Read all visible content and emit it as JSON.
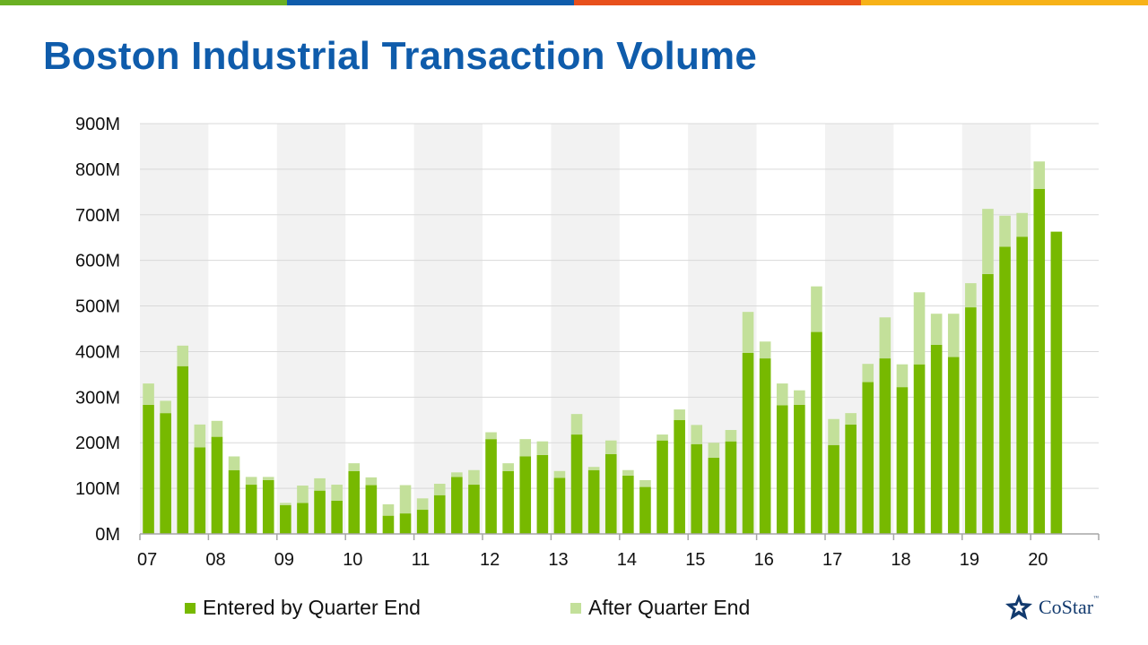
{
  "page": {
    "title": "Boston Industrial Transaction Volume",
    "stripe_colors": [
      "#6ab023",
      "#0f5cab",
      "#e8501c",
      "#f7b218"
    ]
  },
  "legend": {
    "entered_label": "Entered by Quarter End",
    "after_label": "After Quarter End"
  },
  "logo": {
    "text": "CoStar",
    "tm": "™",
    "icon": "costar-star-icon"
  },
  "chart_data": {
    "type": "bar",
    "stacked": true,
    "title": "Boston Industrial Transaction Volume",
    "xlabel": "",
    "ylabel": "",
    "ylim": [
      0,
      900
    ],
    "y_unit": "M",
    "y_ticks": [
      "0M",
      "100M",
      "200M",
      "300M",
      "400M",
      "500M",
      "600M",
      "700M",
      "800M",
      "900M"
    ],
    "x_tick_labels": [
      "07",
      "08",
      "09",
      "10",
      "11",
      "12",
      "13",
      "14",
      "15",
      "16",
      "17",
      "18",
      "19",
      "20"
    ],
    "grid": true,
    "legend_position": "bottom",
    "colors": {
      "entered": "#77b900",
      "after": "#c3e09a",
      "band": "#f2f2f2",
      "grid": "#d9d9d9",
      "axis": "#a6a6a6"
    },
    "categories": [
      "2007 Q1",
      "2007 Q2",
      "2007 Q3",
      "2007 Q4",
      "2008 Q1",
      "2008 Q2",
      "2008 Q3",
      "2008 Q4",
      "2009 Q1",
      "2009 Q2",
      "2009 Q3",
      "2009 Q4",
      "2010 Q1",
      "2010 Q2",
      "2010 Q3",
      "2010 Q4",
      "2011 Q1",
      "2011 Q2",
      "2011 Q3",
      "2011 Q4",
      "2012 Q1",
      "2012 Q2",
      "2012 Q3",
      "2012 Q4",
      "2013 Q1",
      "2013 Q2",
      "2013 Q3",
      "2013 Q4",
      "2014 Q1",
      "2014 Q2",
      "2014 Q3",
      "2014 Q4",
      "2015 Q1",
      "2015 Q2",
      "2015 Q3",
      "2015 Q4",
      "2016 Q1",
      "2016 Q2",
      "2016 Q3",
      "2016 Q4",
      "2017 Q1",
      "2017 Q2",
      "2017 Q3",
      "2017 Q4",
      "2018 Q1",
      "2018 Q2",
      "2018 Q3",
      "2018 Q4",
      "2019 Q1",
      "2019 Q2",
      "2019 Q3",
      "2019 Q4",
      "2020 Q1",
      "2020 Q2"
    ],
    "series": [
      {
        "name": "Entered by Quarter End",
        "values": [
          283,
          265,
          368,
          190,
          213,
          140,
          108,
          118,
          63,
          68,
          95,
          73,
          138,
          107,
          40,
          45,
          53,
          85,
          125,
          108,
          208,
          138,
          170,
          173,
          123,
          218,
          140,
          175,
          128,
          103,
          205,
          250,
          197,
          167,
          203,
          397,
          385,
          282,
          283,
          443,
          195,
          240,
          333,
          385,
          322,
          372,
          415,
          388,
          497,
          570,
          630,
          652,
          757,
          663
        ]
      },
      {
        "name": "After Quarter End",
        "values": [
          47,
          27,
          45,
          50,
          35,
          30,
          17,
          7,
          5,
          38,
          27,
          35,
          17,
          17,
          25,
          62,
          25,
          25,
          10,
          32,
          15,
          17,
          38,
          30,
          15,
          45,
          7,
          30,
          12,
          15,
          13,
          23,
          42,
          33,
          25,
          90,
          37,
          48,
          32,
          100,
          57,
          25,
          40,
          90,
          50,
          158,
          68,
          95,
          53,
          143,
          68,
          52,
          60,
          0
        ]
      }
    ]
  }
}
